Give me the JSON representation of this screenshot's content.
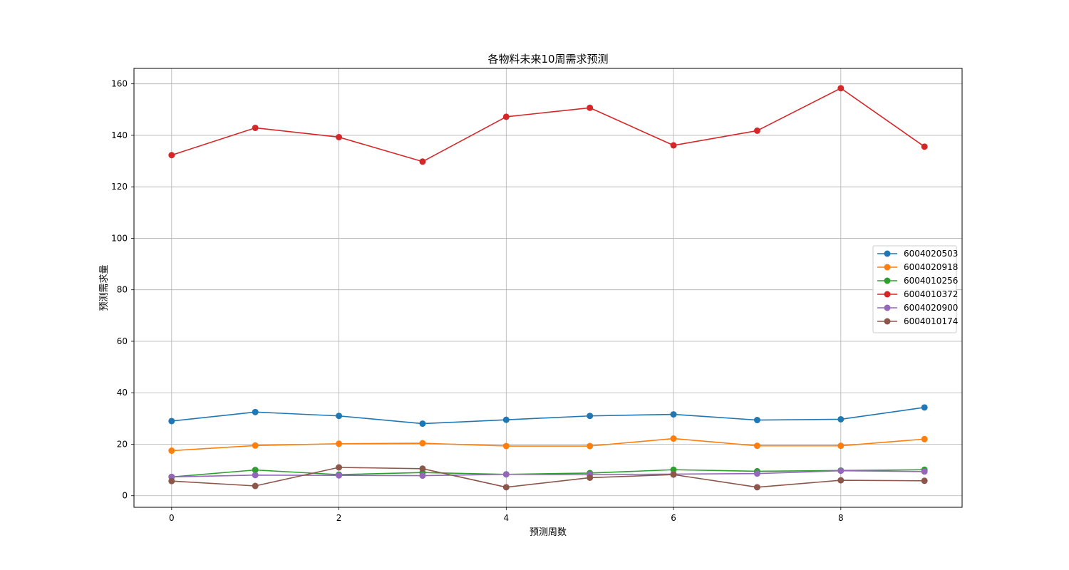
{
  "chart_data": {
    "type": "line",
    "title": "各物料未来10周需求预测",
    "xlabel": "预测周数",
    "ylabel": "预测需求量",
    "x": [
      0,
      1,
      2,
      3,
      4,
      5,
      6,
      7,
      8,
      9
    ],
    "xlim": [
      -0.45,
      9.45
    ],
    "ylim": [
      -4.5,
      166
    ],
    "xticks": [
      0,
      2,
      4,
      6,
      8
    ],
    "xtick_labels": [
      "0",
      "2",
      "4",
      "6",
      "8"
    ],
    "yticks": [
      0,
      20,
      40,
      60,
      80,
      100,
      120,
      140,
      160
    ],
    "ytick_labels": [
      "0",
      "20",
      "40",
      "60",
      "80",
      "100",
      "120",
      "140",
      "160"
    ],
    "grid": true,
    "legend_position": "center-right",
    "marker": "circle",
    "series": [
      {
        "name": "6004020503",
        "color": "#1f77b4",
        "values": [
          29.0,
          32.5,
          31.0,
          28.0,
          29.5,
          31.0,
          31.6,
          29.4,
          29.7,
          34.3
        ]
      },
      {
        "name": "6004020918",
        "color": "#ff7f0e",
        "values": [
          17.5,
          19.5,
          20.2,
          20.4,
          19.3,
          19.3,
          22.2,
          19.4,
          19.4,
          22.0
        ]
      },
      {
        "name": "6004010256",
        "color": "#2ca02c",
        "values": [
          7.3,
          10.0,
          8.2,
          9.0,
          8.3,
          8.8,
          10.1,
          9.5,
          9.8,
          10.1
        ]
      },
      {
        "name": "6004010372",
        "color": "#d62728",
        "values": [
          132.3,
          142.9,
          139.3,
          129.8,
          147.2,
          150.7,
          136.1,
          141.8,
          158.3,
          135.6
        ]
      },
      {
        "name": "6004020900",
        "color": "#9467bd",
        "values": [
          7.3,
          8.0,
          7.9,
          7.8,
          8.3,
          8.2,
          8.4,
          8.6,
          9.7,
          9.4
        ]
      },
      {
        "name": "6004010174",
        "color": "#8c564b",
        "values": [
          5.7,
          3.8,
          11.0,
          10.5,
          3.3,
          7.0,
          8.2,
          3.3,
          6.0,
          5.8
        ]
      }
    ]
  }
}
